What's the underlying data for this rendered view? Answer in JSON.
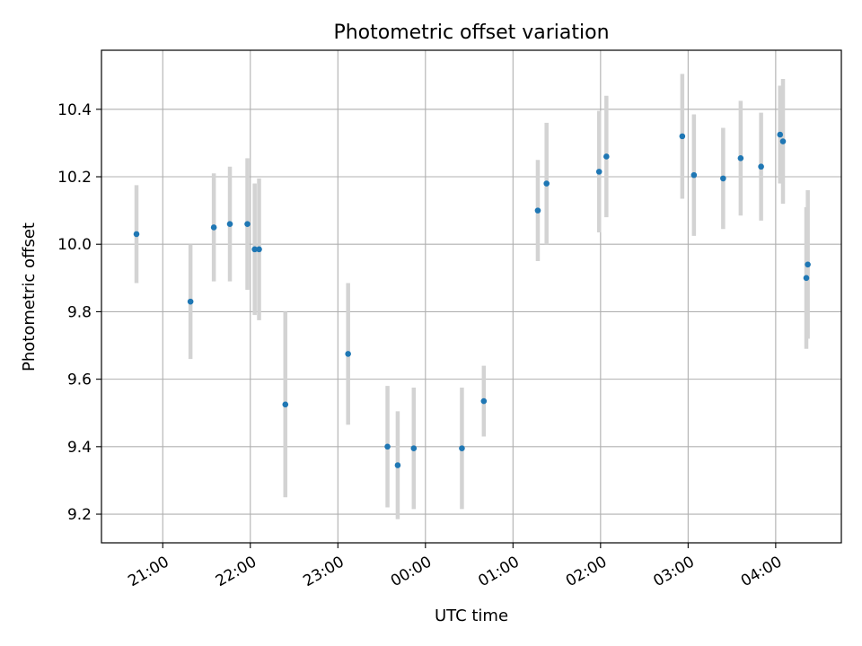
{
  "chart_data": {
    "type": "scatter",
    "title": "Photometric offset variation",
    "xlabel": "UTC time",
    "ylabel": "Photometric offset",
    "grid": true,
    "x_unit": "UTC time (HH:MM), times after 24:00 are past midnight",
    "xlim": [
      "20:18",
      "04:45"
    ],
    "ylim": [
      9.115,
      10.575
    ],
    "xticks": [
      "21:00",
      "22:00",
      "23:00",
      "00:00",
      "01:00",
      "02:00",
      "03:00",
      "04:00"
    ],
    "yticks": [
      "9.2",
      "9.4",
      "9.6",
      "9.8",
      "10.0",
      "10.2",
      "10.4"
    ],
    "colors": {
      "points": "#1f77b4",
      "errorbars": "#d3d3d3",
      "grid": "#b0b0b0"
    },
    "series": [
      {
        "points": [
          {
            "x": "20:42",
            "y": 10.03,
            "err": 0.145
          },
          {
            "x": "21:19",
            "y": 9.83,
            "err": 0.17
          },
          {
            "x": "21:35",
            "y": 10.05,
            "err": 0.16
          },
          {
            "x": "21:46",
            "y": 10.06,
            "err": 0.17
          },
          {
            "x": "21:58",
            "y": 10.06,
            "err": 0.195
          },
          {
            "x": "22:03",
            "y": 9.985,
            "err": 0.195
          },
          {
            "x": "22:06",
            "y": 9.985,
            "err": 0.21
          },
          {
            "x": "22:24",
            "y": 9.525,
            "err": 0.275
          },
          {
            "x": "23:07",
            "y": 9.675,
            "err": 0.21
          },
          {
            "x": "23:34",
            "y": 9.4,
            "err": 0.18
          },
          {
            "x": "23:41",
            "y": 9.345,
            "err": 0.16
          },
          {
            "x": "23:52",
            "y": 9.395,
            "err": 0.18
          },
          {
            "x": "00:25",
            "y": 9.395,
            "err": 0.18
          },
          {
            "x": "00:40",
            "y": 9.535,
            "err": 0.105
          },
          {
            "x": "01:17",
            "y": 10.1,
            "err": 0.15
          },
          {
            "x": "01:23",
            "y": 10.18,
            "err": 0.18
          },
          {
            "x": "01:59",
            "y": 10.215,
            "err": 0.18
          },
          {
            "x": "02:04",
            "y": 10.26,
            "err": 0.18
          },
          {
            "x": "02:56",
            "y": 10.32,
            "err": 0.185
          },
          {
            "x": "03:04",
            "y": 10.205,
            "err": 0.18
          },
          {
            "x": "03:24",
            "y": 10.195,
            "err": 0.15
          },
          {
            "x": "03:36",
            "y": 10.255,
            "err": 0.17
          },
          {
            "x": "03:50",
            "y": 10.23,
            "err": 0.16
          },
          {
            "x": "04:03",
            "y": 10.325,
            "err": 0.145
          },
          {
            "x": "04:05",
            "y": 10.305,
            "err": 0.185
          },
          {
            "x": "04:21",
            "y": 9.9,
            "err": 0.21
          },
          {
            "x": "04:22",
            "y": 9.94,
            "err": 0.22
          }
        ]
      }
    ]
  }
}
